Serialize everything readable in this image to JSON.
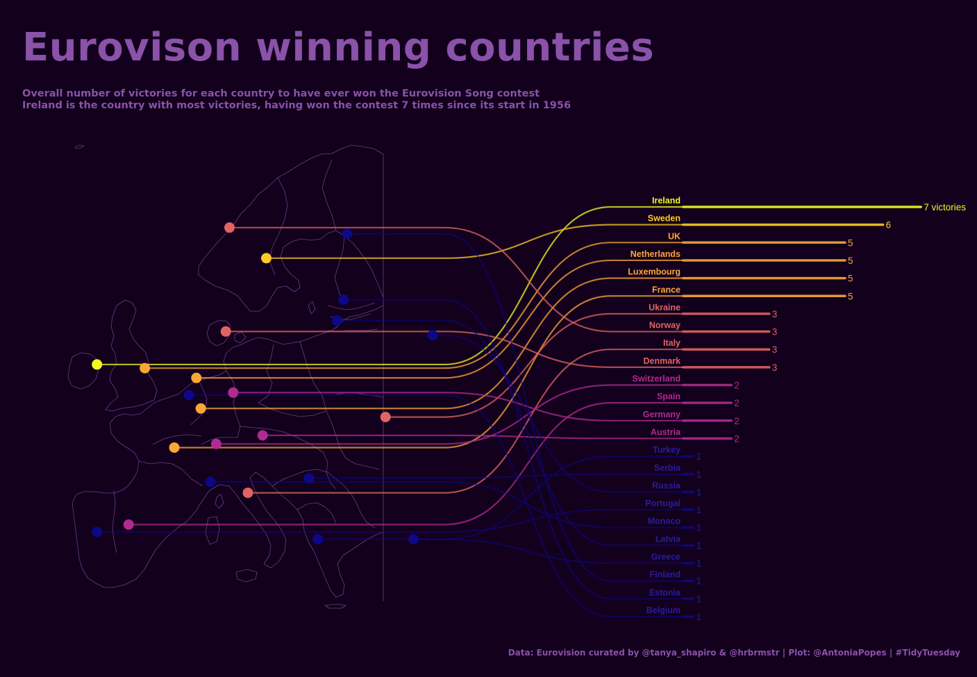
{
  "title": "Eurovison winning countries",
  "subtitle_line1": "Overall number of victories for each country to have ever won the Eurovision Song contest",
  "subtitle_line2": "Ireland is the country with most victories, having won the contest 7 times since its start in 1956",
  "caption": "Data: Eurovision curated by @tanya_shapiro & @hrbrmstr | Plot: @AntoniaPopes | #TidyTuesday",
  "colors": {
    "background": "#12001d",
    "title": "#8a52a8",
    "map_outline": "#6a3f8c",
    "victories_7": "#f0f921",
    "victories_6": "#fdca26",
    "victories_5": "#fca636",
    "victories_3": "#e16462",
    "victories_2": "#b12a90",
    "victories_1": "#0d0887"
  },
  "chart_data": {
    "type": "bar",
    "orientation": "horizontal",
    "value_unit_label": "victories",
    "categories": [
      "Ireland",
      "Sweden",
      "UK",
      "Netherlands",
      "Luxembourg",
      "France",
      "Ukraine",
      "Norway",
      "Italy",
      "Denmark",
      "Switzerland",
      "Spain",
      "Germany",
      "Austria",
      "Turkey",
      "Serbia",
      "Russia",
      "Portugal",
      "Monaco",
      "Latvia",
      "Greece",
      "Finland",
      "Estonia",
      "Belgium"
    ],
    "values": [
      7,
      6,
      5,
      5,
      5,
      5,
      3,
      3,
      3,
      3,
      2,
      2,
      2,
      2,
      1,
      1,
      1,
      1,
      1,
      1,
      1,
      1,
      1,
      1
    ],
    "value_labels": [
      "7 victories",
      "6",
      "5",
      "5",
      "5",
      "5",
      "3",
      "3",
      "3",
      "3",
      "2",
      "2",
      "2",
      "2",
      "1",
      "1",
      "1",
      "1",
      "1",
      "1",
      "1",
      "1",
      "1",
      "1"
    ],
    "map_points": [
      {
        "country": "Ireland",
        "lon": -8.0,
        "lat": 53.3
      },
      {
        "country": "Sweden",
        "lon": 15.0,
        "lat": 62.0
      },
      {
        "country": "UK",
        "lon": -1.5,
        "lat": 53.0
      },
      {
        "country": "Netherlands",
        "lon": 5.5,
        "lat": 52.2
      },
      {
        "country": "Luxembourg",
        "lon": 6.1,
        "lat": 49.7
      },
      {
        "country": "France",
        "lon": 2.5,
        "lat": 46.5
      },
      {
        "country": "Ukraine",
        "lon": 31.2,
        "lat": 49.0
      },
      {
        "country": "Norway",
        "lon": 10.0,
        "lat": 64.5
      },
      {
        "country": "Italy",
        "lon": 12.5,
        "lat": 42.8
      },
      {
        "country": "Denmark",
        "lon": 9.5,
        "lat": 56.0
      },
      {
        "country": "Switzerland",
        "lon": 8.2,
        "lat": 46.8
      },
      {
        "country": "Spain",
        "lon": -3.7,
        "lat": 40.2
      },
      {
        "country": "Germany",
        "lon": 10.5,
        "lat": 51.0
      },
      {
        "country": "Austria",
        "lon": 14.5,
        "lat": 47.5
      },
      {
        "country": "Turkey",
        "lon": 35.0,
        "lat": 39.0
      },
      {
        "country": "Serbia",
        "lon": 20.8,
        "lat": 44.0
      },
      {
        "country": "Russia",
        "lon": 37.6,
        "lat": 55.7
      },
      {
        "country": "Portugal",
        "lon": -8.0,
        "lat": 39.6
      },
      {
        "country": "Monaco",
        "lon": 7.4,
        "lat": 43.7
      },
      {
        "country": "Latvia",
        "lon": 24.6,
        "lat": 56.9
      },
      {
        "country": "Greece",
        "lon": 22.0,
        "lat": 39.0
      },
      {
        "country": "Finland",
        "lon": 26.0,
        "lat": 64.0
      },
      {
        "country": "Estonia",
        "lon": 25.5,
        "lat": 58.6
      },
      {
        "country": "Belgium",
        "lon": 4.5,
        "lat": 50.8
      }
    ]
  }
}
